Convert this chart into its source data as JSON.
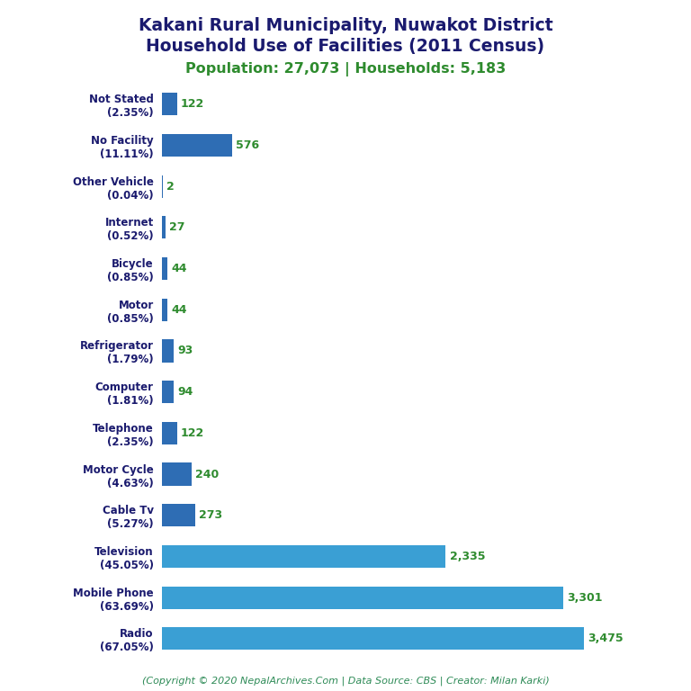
{
  "title_line1": "Kakani Rural Municipality, Nuwakot District",
  "title_line2": "Household Use of Facilities (2011 Census)",
  "subtitle": "Population: 27,073 | Households: 5,183",
  "footer": "(Copyright © 2020 NepalArchives.Com | Data Source: CBS | Creator: Milan Karki)",
  "categories": [
    "Not Stated\n(2.35%)",
    "No Facility\n(11.11%)",
    "Other Vehicle\n(0.04%)",
    "Internet\n(0.52%)",
    "Bicycle\n(0.85%)",
    "Motor\n(0.85%)",
    "Refrigerator\n(1.79%)",
    "Computer\n(1.81%)",
    "Telephone\n(2.35%)",
    "Motor Cycle\n(4.63%)",
    "Cable Tv\n(5.27%)",
    "Television\n(45.05%)",
    "Mobile Phone\n(63.69%)",
    "Radio\n(67.05%)"
  ],
  "values": [
    122,
    576,
    2,
    27,
    44,
    44,
    93,
    94,
    122,
    240,
    273,
    2335,
    3301,
    3475
  ],
  "color_light_blue": "#3a9fd4",
  "color_medium_blue": "#2e6db4",
  "color_dark_blue": "#1e5799",
  "title_color": "#1a1a6e",
  "subtitle_color": "#2e8b2e",
  "value_color": "#2e8b2e",
  "footer_color": "#2e8b57",
  "background_color": "#ffffff",
  "xlim": [
    0,
    3900
  ]
}
